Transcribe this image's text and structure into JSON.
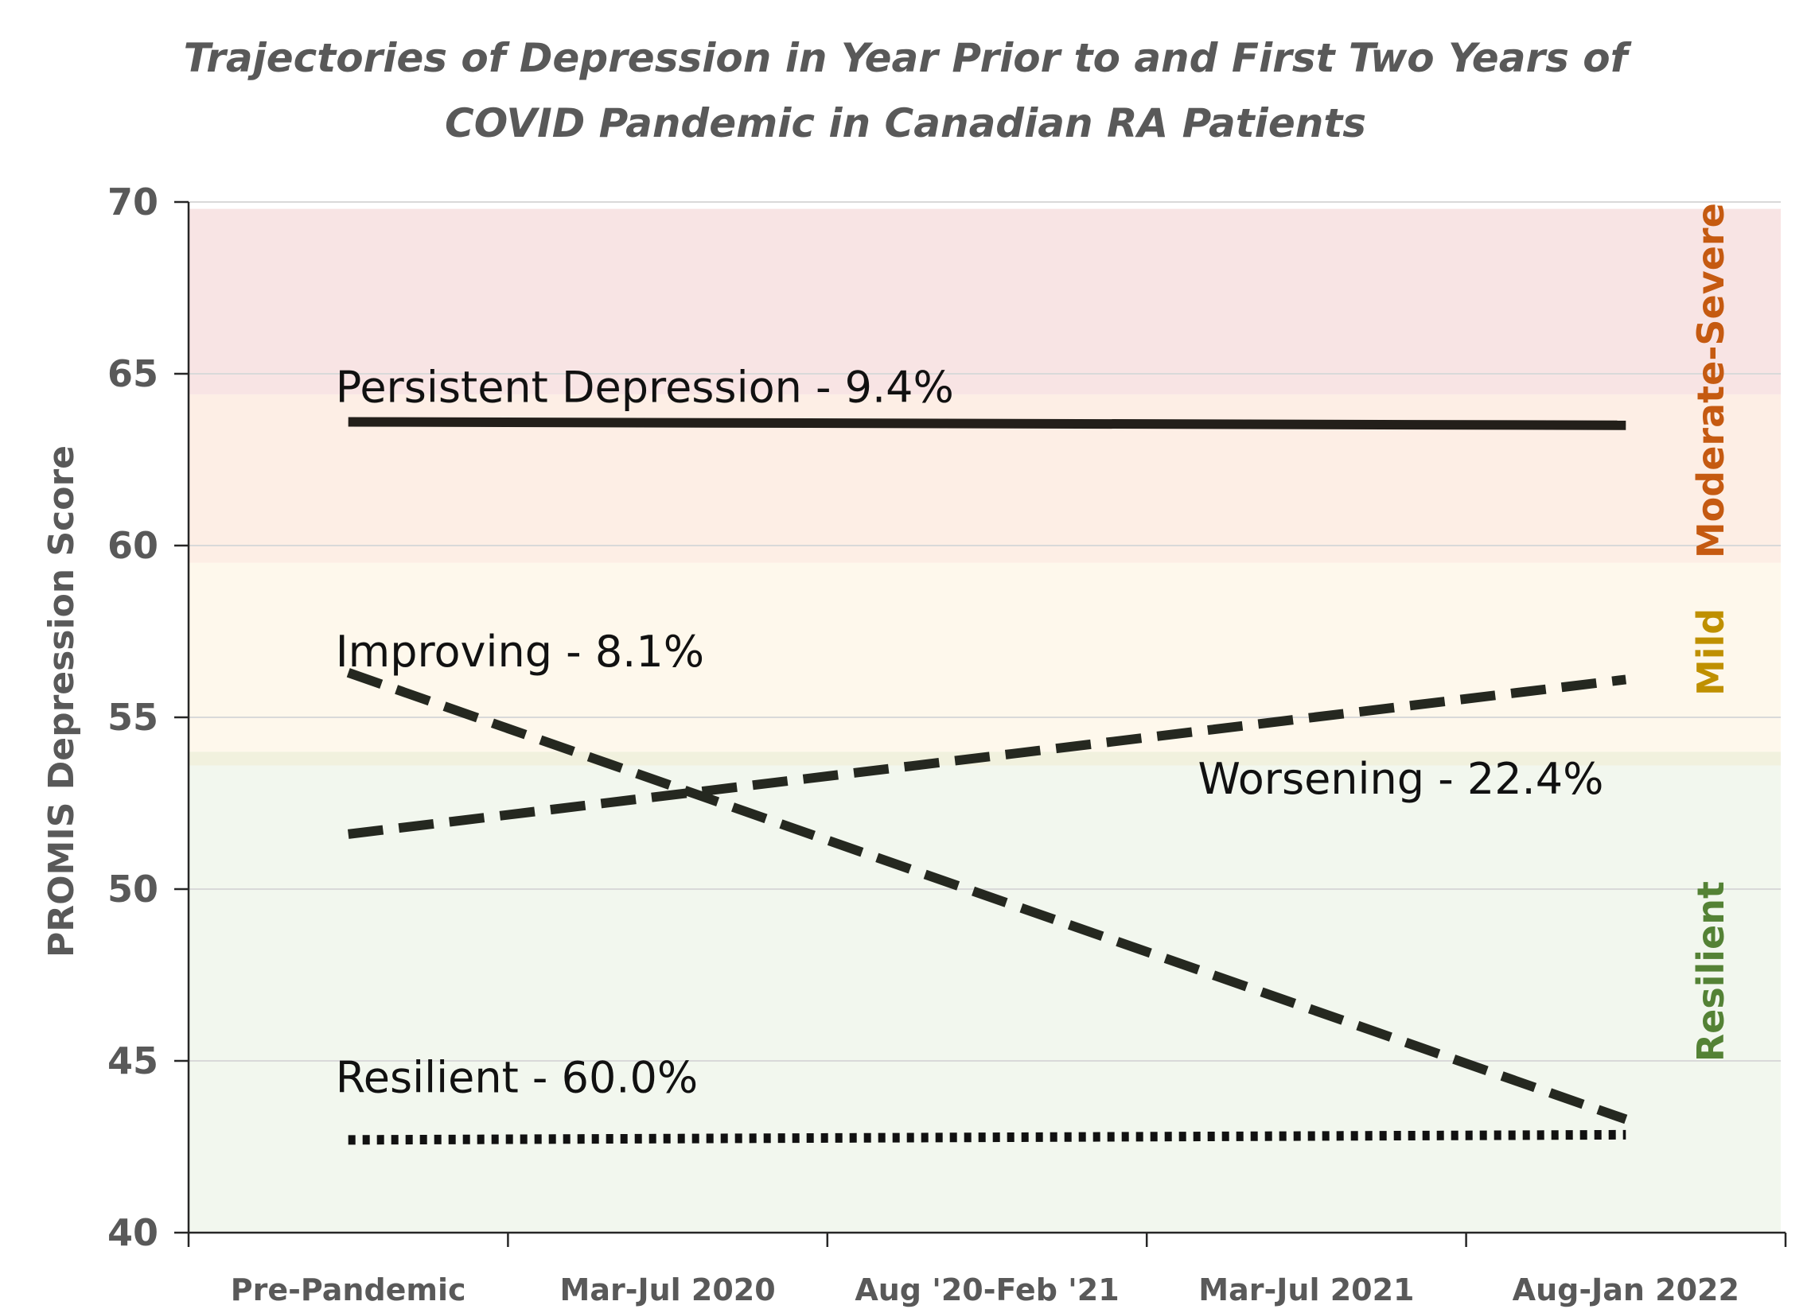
{
  "chart_data": {
    "type": "line",
    "title_lines": [
      "Trajectories of Depression in Year Prior to and First Two Years of",
      "COVID Pandemic in Canadian RA Patients"
    ],
    "ylabel": "PROMIS Depression Score",
    "xlabel": "",
    "ylim": [
      40,
      70
    ],
    "yticks": [
      "40",
      "45",
      "50",
      "55",
      "60",
      "65",
      "70"
    ],
    "yticks_values": [
      40,
      45,
      50,
      55,
      60,
      65,
      70
    ],
    "categories": [
      "Pre-Pandemic",
      "Mar-Jul 2020",
      "Aug '20-Feb '21",
      "Mar-Jul 2021",
      "Aug-Jan 2022"
    ],
    "grid": true,
    "bands": [
      {
        "label": "Resilient",
        "from": 40,
        "to": 53.6,
        "fill": "#f2f7ee",
        "label_color": "#548235"
      },
      {
        "label": "Mild",
        "from": 53.6,
        "to": 54,
        "fill": "#f1f1de",
        "label_color": "#bf9000"
      },
      {
        "label": "",
        "from": 54,
        "to": 59.5,
        "fill": "#fef8ec",
        "label_color": "#bf9000"
      },
      {
        "label": "Moderate-Severe",
        "from": 59.5,
        "to": 64.4,
        "fill": "#fdeee5",
        "label_color": "#c55a11"
      },
      {
        "label": "",
        "from": 64.4,
        "to": 69.8,
        "fill": "#f8e4e4",
        "label_color": "#c55a11"
      }
    ],
    "band_labels": [
      {
        "text": "Moderate-Severe",
        "color": "#c55a11",
        "y_center": 64.8
      },
      {
        "text": "Mild",
        "color": "#bf9000",
        "y_center": 56.9
      },
      {
        "text": "Resilient",
        "color": "#548235",
        "y_center": 47.6
      }
    ],
    "series": [
      {
        "name": "Persistent Depression - 9.4%",
        "style": "solid",
        "x_start": 0,
        "x_end": 4,
        "y_start": 63.6,
        "y_end": 63.5,
        "label_x": 0,
        "label_y": 64.6,
        "color": "#231f1a"
      },
      {
        "name": "Improving - 8.1%",
        "style": "dashed",
        "x_start": 0,
        "x_end": 4,
        "y_start": 56.3,
        "y_end": 43.3,
        "label_x": 0,
        "label_y": 56.9,
        "color": "#252820"
      },
      {
        "name": "Worsening - 22.4%",
        "style": "dashed",
        "x_start": 0,
        "x_end": 4,
        "y_start": 51.6,
        "y_end": 56.1,
        "label_x": 2.7,
        "label_y": 53.2,
        "color": "#252820"
      },
      {
        "name": "Resilient - 60.0%",
        "style": "dotted",
        "x_start": 0,
        "x_end": 4,
        "y_start": 42.7,
        "y_end": 42.85,
        "label_x": 0,
        "label_y": 44.5,
        "color": "#111111"
      }
    ]
  }
}
